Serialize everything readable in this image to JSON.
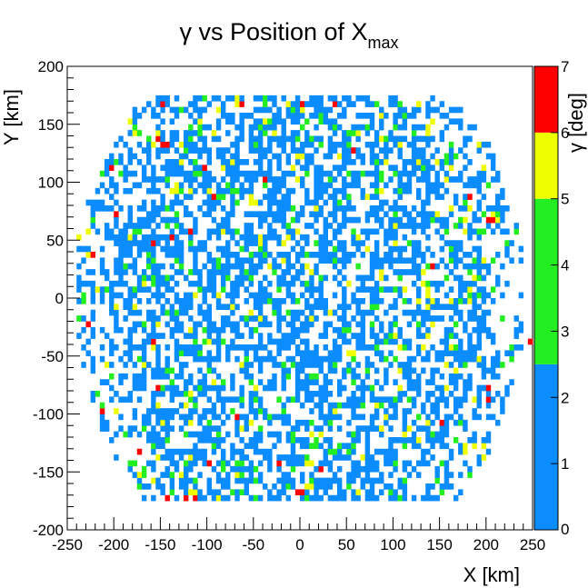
{
  "chart_data": {
    "type": "heatmap",
    "title": "γ vs Position of X",
    "title_subscript": "max",
    "xlabel": "X [km]",
    "ylabel": "Y [km]",
    "zlabel": "γ [deg]",
    "xlim": [
      -250,
      250
    ],
    "ylim": [
      -200,
      200
    ],
    "zlim": [
      0,
      7
    ],
    "x_ticks": [
      "-250",
      "-200",
      "-150",
      "-100",
      "-50",
      "0",
      "50",
      "100",
      "150",
      "200",
      "250"
    ],
    "y_ticks": [
      "-200",
      "-150",
      "-100",
      "-50",
      "0",
      "50",
      "100",
      "150",
      "200"
    ],
    "z_ticks": [
      "0",
      "1",
      "2",
      "3",
      "4",
      "5",
      "6",
      "7"
    ],
    "grid": false,
    "bin_size_km": 5,
    "palette": [
      {
        "from": 0,
        "to": 2.5,
        "color": "#0b8cff"
      },
      {
        "from": 2.5,
        "to": 5,
        "color": "#22ee22"
      },
      {
        "from": 5,
        "to": 6,
        "color": "#eeff00"
      },
      {
        "from": 6,
        "to": 7,
        "color": "#ff0000"
      }
    ],
    "coverage_region": "roughly circular footprint of radius ~230 km centred at (0,0), clipped at Y = ±175 km",
    "cells": [
      {
        "x": -147.5,
        "y": 167.5,
        "z": 6.5
      },
      {
        "x": -127.5,
        "y": 162.5,
        "z": 3.5
      },
      {
        "x": -62.5,
        "y": 167.5,
        "z": 6.5
      },
      {
        "x": -12.5,
        "y": 167.5,
        "z": 5.5
      },
      {
        "x": 2.5,
        "y": 167.5,
        "z": 6.5
      },
      {
        "x": 37.5,
        "y": 167.5,
        "z": 6.5
      },
      {
        "x": 127.5,
        "y": 167.5,
        "z": 5.5
      },
      {
        "x": -152.5,
        "y": 137.5,
        "z": 6.5
      },
      {
        "x": -147.5,
        "y": 132.5,
        "z": 6.5
      },
      {
        "x": -142.5,
        "y": 132.5,
        "z": 6.5
      },
      {
        "x": 162.5,
        "y": 132.5,
        "z": 3.5
      },
      {
        "x": -202.5,
        "y": 112.5,
        "z": 6.5
      },
      {
        "x": -102.5,
        "y": 112.5,
        "z": 6.5
      },
      {
        "x": -37.5,
        "y": 102.5,
        "z": 6.5
      },
      {
        "x": 57.5,
        "y": 127.5,
        "z": 6.5
      },
      {
        "x": 92.5,
        "y": 117.5,
        "z": 5.5
      },
      {
        "x": -92.5,
        "y": 87.5,
        "z": 6.5
      },
      {
        "x": -127.5,
        "y": 92.5,
        "z": 3.5
      },
      {
        "x": -197.5,
        "y": 72.5,
        "z": 6.5
      },
      {
        "x": -137.5,
        "y": 52.5,
        "z": 6.5
      },
      {
        "x": -117.5,
        "y": 57.5,
        "z": 6.5
      },
      {
        "x": -157.5,
        "y": 47.5,
        "z": 6.5
      },
      {
        "x": 182.5,
        "y": 87.5,
        "z": 6.5
      },
      {
        "x": 202.5,
        "y": 67.5,
        "z": 6.5
      },
      {
        "x": 207.5,
        "y": 67.5,
        "z": 6.5
      },
      {
        "x": -237.5,
        "y": 52.5,
        "z": 5.5
      },
      {
        "x": -222.5,
        "y": 37.5,
        "z": 6.5
      },
      {
        "x": 142.5,
        "y": 27.5,
        "z": 6.5
      },
      {
        "x": 222.5,
        "y": 47.5,
        "z": 3.5
      },
      {
        "x": -227.5,
        "y": -22.5,
        "z": 6.5
      },
      {
        "x": 247.5,
        "y": -37.5,
        "z": 6.5
      },
      {
        "x": -157.5,
        "y": -37.5,
        "z": 6.5
      },
      {
        "x": -152.5,
        "y": -77.5,
        "z": 6.5
      },
      {
        "x": 202.5,
        "y": -77.5,
        "z": 6.5
      },
      {
        "x": 202.5,
        "y": -87.5,
        "z": 6.5
      },
      {
        "x": -212.5,
        "y": -97.5,
        "z": 6.5
      },
      {
        "x": -67.5,
        "y": -102.5,
        "z": 6.5
      },
      {
        "x": 152.5,
        "y": -107.5,
        "z": 6.5
      },
      {
        "x": -172.5,
        "y": -132.5,
        "z": 6.5
      },
      {
        "x": -97.5,
        "y": -142.5,
        "z": 6.5
      },
      {
        "x": -22.5,
        "y": -142.5,
        "z": 6.5
      },
      {
        "x": 22.5,
        "y": -147.5,
        "z": 6.5
      },
      {
        "x": -2.5,
        "y": -167.5,
        "z": 6.5
      },
      {
        "x": 2.5,
        "y": -167.5,
        "z": 6.5
      },
      {
        "x": -122.5,
        "y": -172.5,
        "z": 6.5
      },
      {
        "x": -112.5,
        "y": -172.5,
        "z": 6.5
      },
      {
        "x": -142.5,
        "y": -172.5,
        "z": 6.5
      },
      {
        "x": 62.5,
        "y": -167.5,
        "z": 5.5
      },
      {
        "x": 97.5,
        "y": -167.5,
        "z": 3.5
      },
      {
        "x": 152.5,
        "y": -142.5,
        "z": 3.5
      },
      {
        "x": 167.5,
        "y": -122.5,
        "z": 3.5
      },
      {
        "x": -187.5,
        "y": -117.5,
        "z": 3.5
      },
      {
        "x": 117.5,
        "y": -87.5,
        "z": 3.5
      },
      {
        "x": 37.5,
        "y": -57.5,
        "z": 3.5
      },
      {
        "x": -82.5,
        "y": 7.5,
        "z": 3.5
      },
      {
        "x": 62.5,
        "y": 27.5,
        "z": 3.5
      },
      {
        "x": -7.5,
        "y": 67.5,
        "z": 3.5
      },
      {
        "x": 107.5,
        "y": 92.5,
        "z": 3.5
      },
      {
        "x": 187.5,
        "y": 17.5,
        "z": 5.5
      },
      {
        "x": -207.5,
        "y": -57.5,
        "z": 5.5
      },
      {
        "x": 12.5,
        "y": -117.5,
        "z": 5.5
      }
    ],
    "background_value": 1.5,
    "background_seed": 7
  }
}
